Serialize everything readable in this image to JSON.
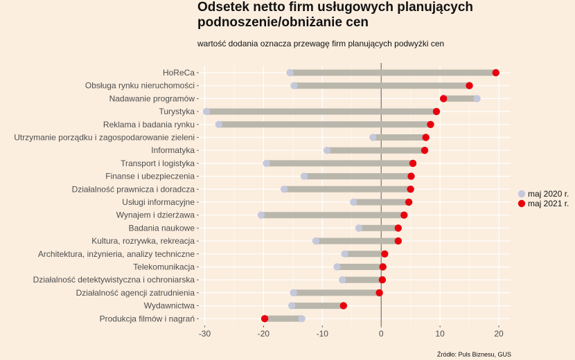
{
  "chart_data": {
    "type": "dumbbell",
    "title": "Odsetek netto firm usługowych planujących podnoszenie/obniżanie cen",
    "subtitle": "wartość dodania oznacza przewagę firm planujących podwyżki cen",
    "caption": "Źródło: Puls Biznesu, GUS",
    "xlim": [
      -31,
      22
    ],
    "xticks": [
      -30,
      -20,
      -10,
      0,
      10,
      20
    ],
    "xtick_labels": [
      "-30",
      "-20",
      "-10",
      "0",
      "10",
      "20"
    ],
    "grid": true,
    "legend_position": "right",
    "series": [
      {
        "name": "maj 2020 r.",
        "color": "#C4C8DA"
      },
      {
        "name": "maj 2021 r.",
        "color": "#E8000C"
      }
    ],
    "categories": [
      "HoReCa",
      "Obsługa rynku nieruchomości",
      "Nadawanie programów",
      "Turystyka",
      "Reklama i badania rynku",
      "Utrzymanie porządku i zagospodarowanie zieleni",
      "Informatyka",
      "Transport i logistyka",
      "Finanse i ubezpieczenia",
      "Działalność prawnicza i doradcza",
      "Usługi informacyjne",
      "Wynajem i dzierżawa",
      "Badania naukowe",
      "Kultura, rozrywka, rekreacja",
      "Architektura, inżynieria, analizy techniczne",
      "Telekomunikacja",
      "Działalność detektywistyczna i ochroniarska",
      "Działalność agencji zatrudnienia",
      "Wydawnictwa",
      "Produkcja filmów i nagrań"
    ],
    "values_2020": [
      -15.5,
      -14.8,
      16.3,
      -29.7,
      -27.6,
      -1.4,
      -9.2,
      -19.5,
      -13.1,
      -16.5,
      -4.7,
      -20.4,
      -3.8,
      -11.1,
      -6.2,
      -7.5,
      -6.6,
      -14.9,
      -15.2,
      -13.5
    ],
    "values_2021": [
      19.5,
      15.0,
      10.6,
      9.4,
      8.4,
      7.6,
      7.4,
      5.4,
      5.1,
      5.0,
      4.7,
      3.9,
      2.9,
      2.9,
      0.6,
      0.3,
      0.2,
      -0.3,
      -6.4,
      -19.8
    ]
  }
}
